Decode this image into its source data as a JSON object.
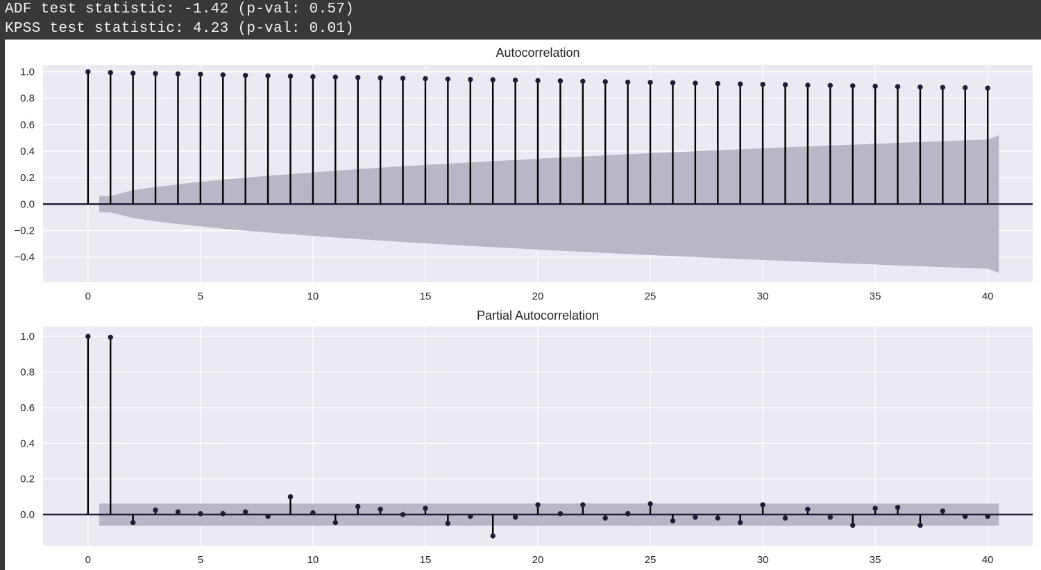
{
  "console": {
    "lines": [
      "ADF test statistic: -1.42 (p-val: 0.57)",
      "KPSS test statistic: 4.23 (p-val: 0.01)"
    ]
  },
  "colors": {
    "plot_background": "#eaeaf2",
    "grid": "#ffffff",
    "stem": "#000000",
    "marker": "#1e1e36",
    "zero_line": "#1e1e36",
    "confidence_band": "#b4b4c2"
  },
  "chart_data": [
    {
      "type": "stem",
      "title": "Autocorrelation",
      "xlabel": "",
      "ylabel": "",
      "xlim": [
        -2,
        42
      ],
      "ylim": [
        -0.59,
        1.05
      ],
      "x_ticks": [
        0,
        5,
        10,
        15,
        20,
        25,
        30,
        35,
        40
      ],
      "y_ticks": [
        -0.4,
        -0.2,
        0.0,
        0.2,
        0.4,
        0.6,
        0.8,
        1.0
      ],
      "y_tick_labels": [
        "−0.4",
        "−0.2",
        "0.0",
        "0.2",
        "0.4",
        "0.6",
        "0.8",
        "1.0"
      ],
      "grid": true,
      "lags": [
        0,
        1,
        2,
        3,
        4,
        5,
        6,
        7,
        8,
        9,
        10,
        11,
        12,
        13,
        14,
        15,
        16,
        17,
        18,
        19,
        20,
        21,
        22,
        23,
        24,
        25,
        26,
        27,
        28,
        29,
        30,
        31,
        32,
        33,
        34,
        35,
        36,
        37,
        38,
        39,
        40
      ],
      "values": [
        1.0,
        0.994,
        0.99,
        0.987,
        0.984,
        0.981,
        0.977,
        0.973,
        0.97,
        0.967,
        0.963,
        0.96,
        0.957,
        0.954,
        0.951,
        0.948,
        0.945,
        0.942,
        0.94,
        0.937,
        0.934,
        0.931,
        0.928,
        0.925,
        0.922,
        0.92,
        0.917,
        0.914,
        0.911,
        0.908,
        0.905,
        0.902,
        0.899,
        0.897,
        0.894,
        0.891,
        0.888,
        0.885,
        0.882,
        0.88,
        0.877
      ],
      "confidence_band": {
        "lags": [
          0.5,
          1,
          2,
          3,
          4,
          5,
          6,
          7,
          8,
          9,
          10,
          11,
          12,
          13,
          14,
          15,
          16,
          17,
          18,
          19,
          20,
          21,
          22,
          23,
          24,
          25,
          26,
          27,
          28,
          29,
          30,
          31,
          32,
          33,
          34,
          35,
          36,
          37,
          38,
          39,
          40,
          40.5
        ],
        "half_width": [
          0.062,
          0.062,
          0.105,
          0.13,
          0.15,
          0.168,
          0.185,
          0.2,
          0.214,
          0.227,
          0.24,
          0.252,
          0.264,
          0.275,
          0.286,
          0.296,
          0.306,
          0.316,
          0.325,
          0.334,
          0.343,
          0.352,
          0.36,
          0.369,
          0.377,
          0.385,
          0.392,
          0.4,
          0.407,
          0.415,
          0.422,
          0.429,
          0.436,
          0.443,
          0.449,
          0.456,
          0.463,
          0.469,
          0.476,
          0.482,
          0.488,
          0.52
        ]
      }
    },
    {
      "type": "stem",
      "title": "Partial Autocorrelation",
      "xlabel": "",
      "ylabel": "",
      "xlim": [
        -2,
        42
      ],
      "ylim": [
        -0.175,
        1.055
      ],
      "x_ticks": [
        0,
        5,
        10,
        15,
        20,
        25,
        30,
        35,
        40
      ],
      "y_ticks": [
        0.0,
        0.2,
        0.4,
        0.6,
        0.8,
        1.0
      ],
      "y_tick_labels": [
        "0.0",
        "0.2",
        "0.4",
        "0.6",
        "0.8",
        "1.0"
      ],
      "grid": true,
      "lags": [
        0,
        1,
        2,
        3,
        4,
        5,
        6,
        7,
        8,
        9,
        10,
        11,
        12,
        13,
        14,
        15,
        16,
        17,
        18,
        19,
        20,
        21,
        22,
        23,
        24,
        25,
        26,
        27,
        28,
        29,
        30,
        31,
        32,
        33,
        34,
        35,
        36,
        37,
        38,
        39,
        40
      ],
      "values": [
        1.0,
        0.995,
        -0.045,
        0.025,
        0.015,
        0.005,
        0.005,
        0.015,
        -0.01,
        0.1,
        0.01,
        -0.045,
        0.045,
        0.03,
        0.0,
        0.035,
        -0.05,
        -0.01,
        -0.12,
        -0.015,
        0.055,
        0.005,
        0.055,
        -0.02,
        0.005,
        0.06,
        -0.035,
        -0.015,
        -0.02,
        -0.045,
        0.055,
        -0.02,
        0.03,
        -0.015,
        -0.06,
        0.035,
        0.04,
        -0.06,
        0.02,
        -0.01,
        -0.01
      ],
      "confidence_band": {
        "lags": [
          0.5,
          40.5
        ],
        "half_width": [
          0.062,
          0.062
        ]
      }
    }
  ]
}
